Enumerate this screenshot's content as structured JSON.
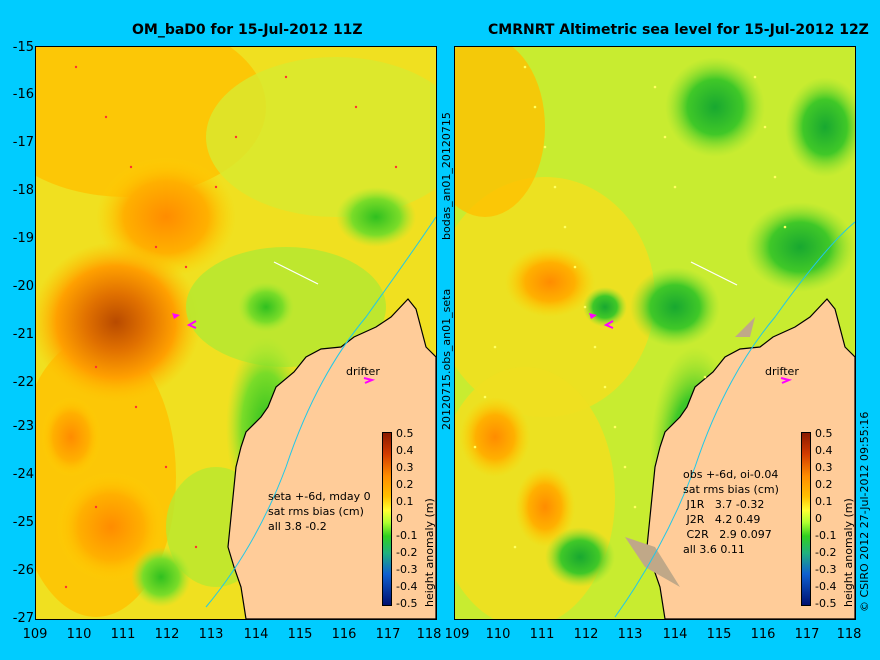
{
  "left_panel": {
    "title": "OM_baD0 for 15-Jul-2012 11Z",
    "stats": "seta +-6d, mday 0\nsat rms bias (cm)\nall 3.8 -0.2",
    "drifter_label": "drifter"
  },
  "right_panel": {
    "title": "CMRNRT Altimetric sea level  for 15-Jul-2012 12Z",
    "stats": "obs +-6d, oi-0.04\nsat rms bias (cm)\n J1R   3.7 -0.32\n J2R   4.2 0.49\n C2R   2.9 0.097\nall 3.6 0.11",
    "drifter_label": "drifter"
  },
  "side_label": "20120715.obs_an01_seta",
  "top_side_label": "bodas_an01_20120715",
  "credit": "© CSIRO 2012   27-Jul-2012 09:55:16",
  "colorbar": {
    "label": "height anomaly (m)",
    "ticks": [
      "0.5",
      "0.4",
      "0.3",
      "0.2",
      "0.1",
      "0",
      "-0.1",
      "-0.2",
      "-0.3",
      "-0.4",
      "-0.5"
    ]
  },
  "lat_ticks": [
    "-15",
    "-16",
    "-17",
    "-18",
    "-19",
    "-20",
    "-21",
    "-22",
    "-23",
    "-24",
    "-25",
    "-26",
    "-27"
  ],
  "lon_ticks_left": [
    "109",
    "110",
    "111",
    "112",
    "113",
    "114",
    "115",
    "116",
    "117",
    "118"
  ],
  "lon_ticks_right": [
    "109",
    "110",
    "111",
    "112",
    "113",
    "114",
    "115",
    "116",
    "117",
    "118"
  ],
  "colors": {
    "background": "#00ccff",
    "land": "#ffcc99",
    "ocean_base": "#c8ee30"
  }
}
